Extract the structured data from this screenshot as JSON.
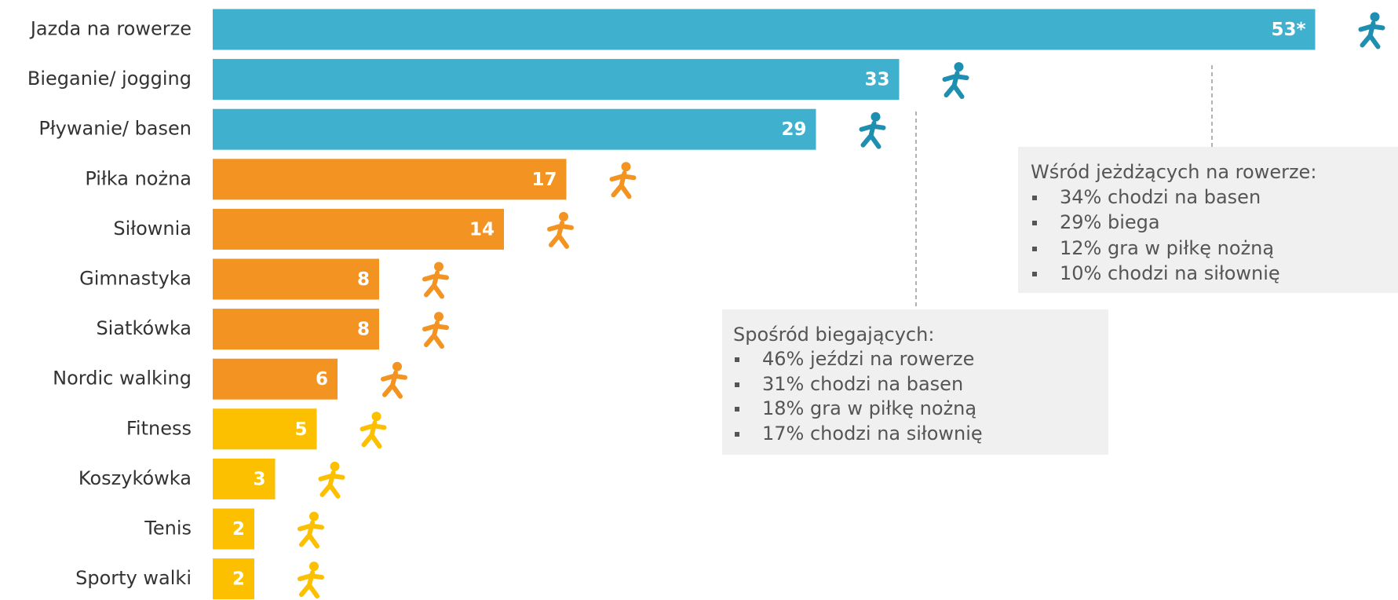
{
  "chart_data": {
    "type": "bar",
    "orientation": "horizontal",
    "categories": [
      "Jazda na rowerze",
      "Bieganie/ jogging",
      "Pływanie/ basen",
      "Piłka nożna",
      "Siłownia",
      "Gimnastyka",
      "Siatkówka",
      "Nordic walking",
      "Fitness",
      "Koszykówka",
      "Tenis",
      "Sporty walki"
    ],
    "values": [
      53,
      33,
      29,
      17,
      14,
      8,
      8,
      6,
      5,
      3,
      2,
      2
    ],
    "value_labels": [
      "53*",
      "33",
      "29",
      "17",
      "14",
      "8",
      "8",
      "6",
      "5",
      "3",
      "2",
      "2"
    ],
    "colors": [
      "#3fb1ce",
      "#3fb1ce",
      "#3fb1ce",
      "#f39422",
      "#f39422",
      "#f39422",
      "#f39422",
      "#f39422",
      "#fcc000",
      "#fcc000",
      "#fcc000",
      "#fcc000"
    ],
    "annotations": [
      {
        "title": "Wśród jeżdżących na rowerze:",
        "items": [
          "34% chodzi na basen",
          "29% biega",
          "12% gra w piłkę nożną",
          "10% chodzi na siłownię"
        ]
      },
      {
        "title": "Spośród biegających:",
        "items": [
          "46% jeździ na rowerze",
          "31% chodzi na basen",
          "18% gra w piłkę nożną",
          "17% chodzi na siłownię"
        ]
      }
    ]
  }
}
